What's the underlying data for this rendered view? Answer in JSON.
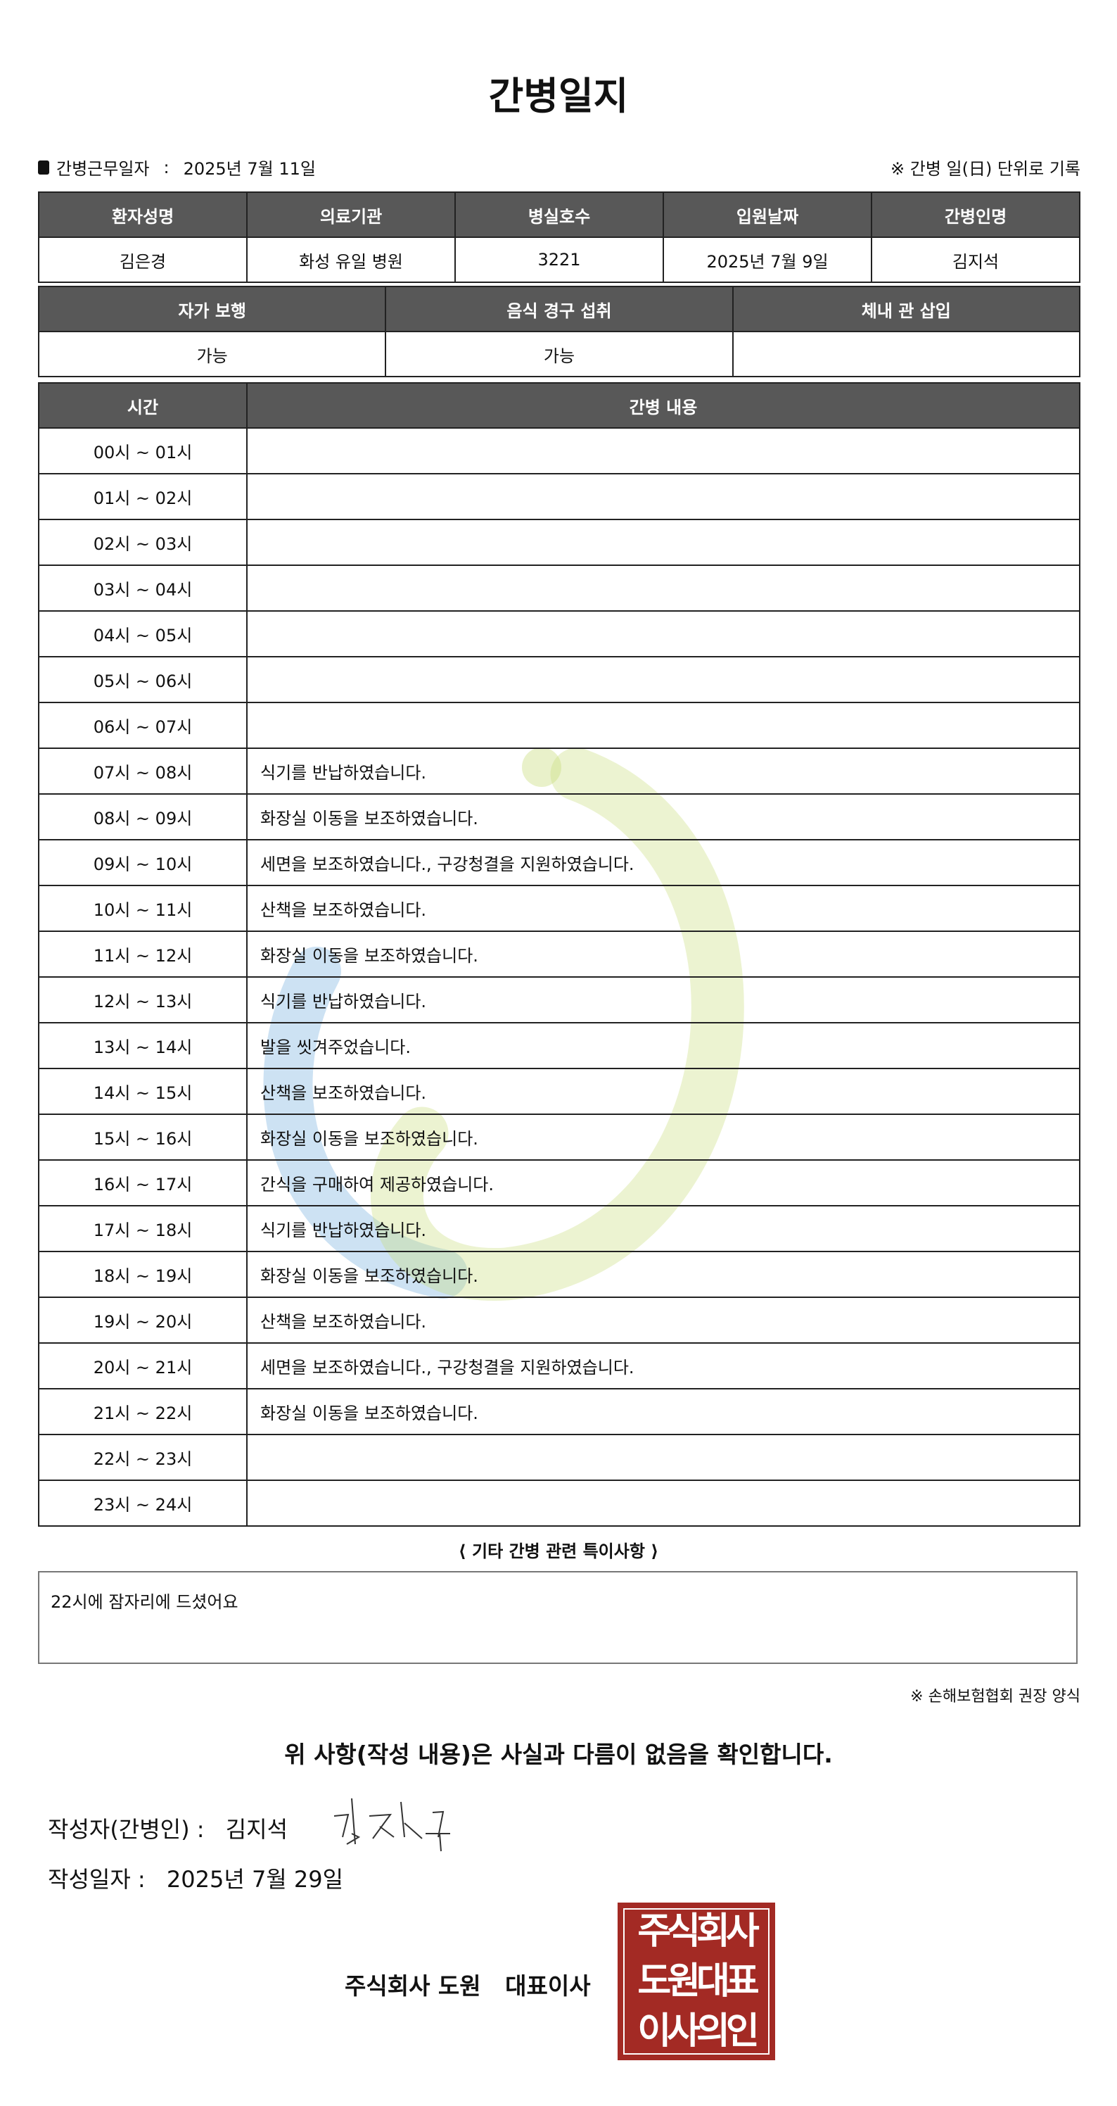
{
  "title": "간병일지",
  "info": {
    "label": "간병근무일자",
    "sep": ":",
    "date": "2025년 7월 11일",
    "note": "※ 간병 일(日) 단위로 기록"
  },
  "patient_table": {
    "headers": [
      "환자성명",
      "의료기관",
      "병실호수",
      "입원날짜",
      "간병인명"
    ],
    "values": [
      "김은경",
      "화성 유일 병원",
      "3221",
      "2025년 7월 9일",
      "김지석"
    ]
  },
  "status_table": {
    "headers": [
      "자가 보행",
      "음식 경구 섭취",
      "체내 관 삽입"
    ],
    "values": [
      "가능",
      "가능",
      ""
    ]
  },
  "log_table": {
    "headers": [
      "시간",
      "간병 내용"
    ],
    "rows": [
      {
        "time": "00시 ~ 01시",
        "content": ""
      },
      {
        "time": "01시 ~ 02시",
        "content": ""
      },
      {
        "time": "02시 ~ 03시",
        "content": ""
      },
      {
        "time": "03시 ~ 04시",
        "content": ""
      },
      {
        "time": "04시 ~ 05시",
        "content": ""
      },
      {
        "time": "05시 ~ 06시",
        "content": ""
      },
      {
        "time": "06시 ~ 07시",
        "content": ""
      },
      {
        "time": "07시 ~ 08시",
        "content": "식기를 반납하였습니다."
      },
      {
        "time": "08시 ~ 09시",
        "content": "화장실 이동을 보조하였습니다."
      },
      {
        "time": "09시 ~ 10시",
        "content": "세면을 보조하였습니다., 구강청결을 지원하였습니다."
      },
      {
        "time": "10시 ~ 11시",
        "content": "산책을 보조하였습니다."
      },
      {
        "time": "11시 ~ 12시",
        "content": "화장실 이동을 보조하였습니다."
      },
      {
        "time": "12시 ~ 13시",
        "content": "식기를 반납하였습니다."
      },
      {
        "time": "13시 ~ 14시",
        "content": "발을 씻겨주었습니다."
      },
      {
        "time": "14시 ~ 15시",
        "content": "산책을 보조하였습니다."
      },
      {
        "time": "15시 ~ 16시",
        "content": "화장실 이동을 보조하였습니다."
      },
      {
        "time": "16시 ~ 17시",
        "content": "간식을 구매하여 제공하였습니다."
      },
      {
        "time": "17시 ~ 18시",
        "content": "식기를 반납하였습니다."
      },
      {
        "time": "18시 ~ 19시",
        "content": "화장실 이동을 보조하였습니다."
      },
      {
        "time": "19시 ~ 20시",
        "content": "산책을 보조하였습니다."
      },
      {
        "time": "20시 ~ 21시",
        "content": "세면을 보조하였습니다., 구강청결을 지원하였습니다."
      },
      {
        "time": "21시 ~ 22시",
        "content": "화장실 이동을 보조하였습니다."
      },
      {
        "time": "22시 ~ 23시",
        "content": ""
      },
      {
        "time": "23시 ~ 24시",
        "content": ""
      }
    ]
  },
  "notes": {
    "heading": "⟨ 기타 간병 관련 특이사항 ⟩",
    "text": "22시에 잠자리에 드셨어요"
  },
  "form_note": "※ 손해보험협회 권장 양식",
  "confirm": "위 사항(작성 내용)은 사실과 다름이 없음을 확인합니다.",
  "writer": {
    "label": "작성자(간병인) :",
    "name": "김지석",
    "signature": "김지석"
  },
  "written_date": {
    "label": "작성일자 :",
    "date": "2025년 7월 29일"
  },
  "company": "주식회사 도원   대표이사",
  "stamp": {
    "lines": [
      "주식회사",
      "도원대표",
      "이사의인"
    ]
  },
  "colors": {
    "header_bg": "#585858",
    "stamp": "#a32a24",
    "watermark_blue": "#5aa0d8",
    "watermark_green": "#c9dc7a"
  }
}
